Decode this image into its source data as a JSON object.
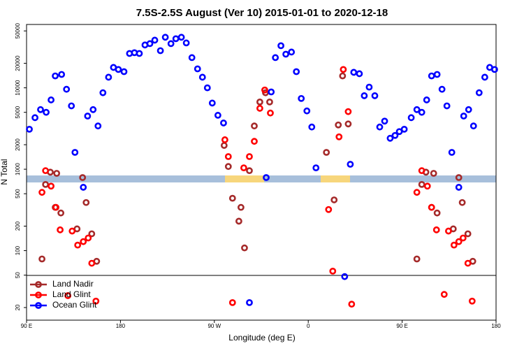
{
  "chart_data": {
    "type": "scatter",
    "title": "7.5S-2.5S August (Ver 10)   2015-01-01 to 2020-12-18",
    "xlabel": "Longitude (deg E)",
    "ylabel": "N Total",
    "yscale": "log",
    "xlim": [
      90,
      540
    ],
    "ylim": [
      14,
      60000
    ],
    "xticks": [
      {
        "value": 90,
        "label": "90 E"
      },
      180,
      {
        "value": 270,
        "label": "90 W"
      },
      {
        "value": 360,
        "label": "0"
      },
      {
        "value": 450,
        "label": "90 E"
      },
      {
        "value": 540,
        "label": "180"
      }
    ],
    "yticks": [
      20,
      50,
      100,
      200,
      500,
      1000,
      2000,
      5000,
      10000,
      20000,
      50000
    ],
    "legend": "lower left",
    "series": [
      {
        "name": "Land Nadir",
        "color": "#a52a2a",
        "x": [
          104.8,
          108.2,
          112.8,
          118.9,
          117.5,
          122.9,
          138.4,
          143.7,
          147.1,
          152.5,
          157.2,
          279.4,
          283.4,
          287.4,
          293.5,
          295.5,
          298.9,
          303.6,
          308.3,
          313.6,
          323,
          319,
          377.4,
          384.8,
          388.8,
          392.9,
          398.3,
          464.1,
          468.8,
          472.8,
          480.2,
          478.2,
          483.5,
          499,
          504.3,
          507.6,
          513,
          517.7
        ],
        "values": [
          79,
          650,
          920,
          890,
          340,
          290,
          185,
          790,
          390,
          161,
          74,
          1960,
          1080,
          440,
          230,
          340,
          108,
          960,
          3400,
          6700,
          6700,
          8700,
          1610,
          420,
          3500,
          14000,
          3600,
          79,
          650,
          920,
          890,
          340,
          290,
          185,
          790,
          390,
          161,
          74
        ]
      },
      {
        "name": "Land Glint",
        "color": "#ff0000",
        "x": [
          104.8,
          108.2,
          113.5,
          118.2,
          122.2,
          129.6,
          133.7,
          139,
          144.4,
          149.1,
          152.5,
          156.5,
          280.1,
          283.4,
          298.2,
          303.6,
          308.3,
          313.6,
          318.3,
          323.7,
          287.4,
          379.5,
          383.5,
          389.5,
          393.6,
          398.3,
          401.6,
          464.1,
          468.8,
          474.2,
          478.2,
          482.9,
          490.3,
          494.4,
          499.7,
          504.3,
          508.4,
          513,
          517.1
        ],
        "values": [
          520,
          960,
          620,
          340,
          180,
          28,
          174,
          117,
          129,
          143,
          70,
          24,
          2300,
          1430,
          1040,
          1430,
          2200,
          5600,
          9400,
          4900,
          23,
          320,
          56,
          2500,
          16800,
          5100,
          22,
          520,
          960,
          620,
          340,
          180,
          29,
          174,
          117,
          129,
          143,
          70,
          24
        ]
      },
      {
        "name": "Ocean Glint",
        "color": "#0000ff",
        "x": [
          92.7,
          98.1,
          103.4,
          108.8,
          113.5,
          117.5,
          123.6,
          128.3,
          133,
          136.4,
          144.4,
          148.5,
          153.8,
          158.5,
          163.2,
          168.6,
          173.3,
          178,
          183.4,
          188.7,
          193.4,
          198.1,
          203.5,
          208.2,
          212.9,
          218.3,
          223,
          228.4,
          233.1,
          238.4,
          243.1,
          248.5,
          253.9,
          258.6,
          263.3,
          268,
          273.4,
          278.8,
          319.7,
          324.5,
          328.5,
          333.8,
          338.5,
          343.9,
          348.6,
          353.3,
          358.7,
          363.4,
          367.4,
          400.3,
          403.6,
          409,
          413.7,
          418.4,
          423.8,
          428.5,
          433.2,
          438.5,
          443.2,
          447.3,
          452,
          458.7,
          464.1,
          468.8,
          473.5,
          478.2,
          483.5,
          488.2,
          492.9,
          497.6,
          504.3,
          509,
          513.7,
          518.4,
          523.8,
          529.2,
          533.9,
          538.6,
          303.6,
          394.9
        ],
        "values": [
          3100,
          4300,
          5400,
          5000,
          7100,
          14000,
          14600,
          9600,
          6000,
          1610,
          600,
          4500,
          5400,
          3400,
          8700,
          13500,
          17800,
          16800,
          15800,
          26400,
          27000,
          26400,
          33600,
          34900,
          38500,
          28600,
          41800,
          34900,
          40100,
          41800,
          35600,
          23500,
          17100,
          13500,
          10000,
          6500,
          4600,
          3700,
          790,
          8900,
          23500,
          32900,
          25900,
          27500,
          15800,
          7400,
          5200,
          3300,
          1040,
          1150,
          15500,
          14900,
          8000,
          10200,
          8000,
          3300,
          3900,
          2400,
          2600,
          2900,
          3100,
          4300,
          5400,
          5000,
          7100,
          14000,
          14600,
          9600,
          6000,
          1610,
          600,
          4500,
          5400,
          3400,
          8700,
          13500,
          17800,
          16800,
          23,
          48
        ]
      }
    ]
  }
}
